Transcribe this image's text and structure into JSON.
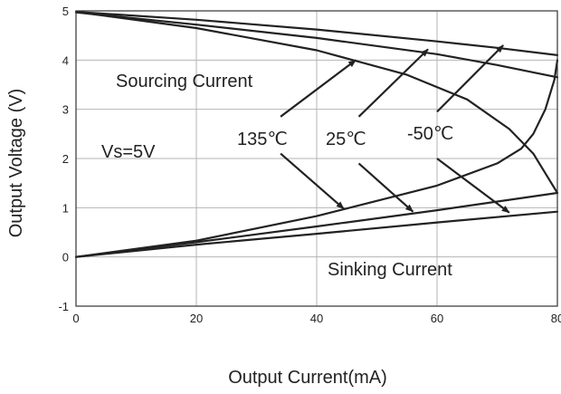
{
  "chart_data": {
    "type": "line",
    "xlabel": "Output Current(mA)",
    "ylabel": "Output Voltage (V)",
    "xlim": [
      0,
      80
    ],
    "ylim": [
      -1,
      5
    ],
    "xticks": [
      "0",
      "20",
      "40",
      "60",
      "80"
    ],
    "yticks": [
      "-1",
      "0",
      "1",
      "2",
      "3",
      "4",
      "5"
    ],
    "grid": true,
    "series": [
      {
        "group": "sourcing",
        "temp": "135℃",
        "x": [
          0,
          20,
          40,
          55,
          65,
          72,
          76,
          78.5,
          80
        ],
        "y": [
          4.98,
          4.65,
          4.2,
          3.7,
          3.2,
          2.6,
          2.1,
          1.6,
          1.3
        ]
      },
      {
        "group": "sourcing",
        "temp": "25℃",
        "x": [
          0,
          20,
          40,
          60,
          70,
          76,
          80
        ],
        "y": [
          4.97,
          4.72,
          4.45,
          4.12,
          3.9,
          3.75,
          3.65
        ]
      },
      {
        "group": "sourcing",
        "temp": "-50℃",
        "x": [
          0,
          20,
          40,
          60,
          70,
          80
        ],
        "y": [
          4.98,
          4.82,
          4.62,
          4.38,
          4.25,
          4.1
        ]
      },
      {
        "group": "sinking",
        "temp": "135℃",
        "x": [
          0,
          20,
          40,
          60,
          70,
          74,
          76,
          78,
          79.5,
          80
        ],
        "y": [
          0,
          0.33,
          0.83,
          1.45,
          1.9,
          2.2,
          2.5,
          3.0,
          3.6,
          4.0
        ]
      },
      {
        "group": "sinking",
        "temp": "25℃",
        "x": [
          0,
          20,
          40,
          60,
          80
        ],
        "y": [
          0,
          0.3,
          0.62,
          0.95,
          1.3
        ]
      },
      {
        "group": "sinking",
        "temp": "-50℃",
        "x": [
          0,
          20,
          40,
          60,
          80
        ],
        "y": [
          0,
          0.25,
          0.47,
          0.7,
          0.92
        ]
      }
    ],
    "annotations": {
      "sourcing": "Sourcing Current",
      "sinking": "Sinking Current",
      "supply": "Vs=5V",
      "temps": [
        "135℃",
        "25℃",
        "-50℃"
      ]
    },
    "arrows": [
      {
        "from": [
          34,
          2.85
        ],
        "to": [
          46.5,
          4.0
        ]
      },
      {
        "from": [
          47,
          2.85
        ],
        "to": [
          58.5,
          4.22
        ]
      },
      {
        "from": [
          60,
          2.95
        ],
        "to": [
          71,
          4.3
        ]
      },
      {
        "from": [
          34,
          2.1
        ],
        "to": [
          44.5,
          0.98
        ]
      },
      {
        "from": [
          47,
          1.9
        ],
        "to": [
          56,
          0.92
        ]
      },
      {
        "from": [
          60,
          2.0
        ],
        "to": [
          72,
          0.9
        ]
      }
    ]
  }
}
